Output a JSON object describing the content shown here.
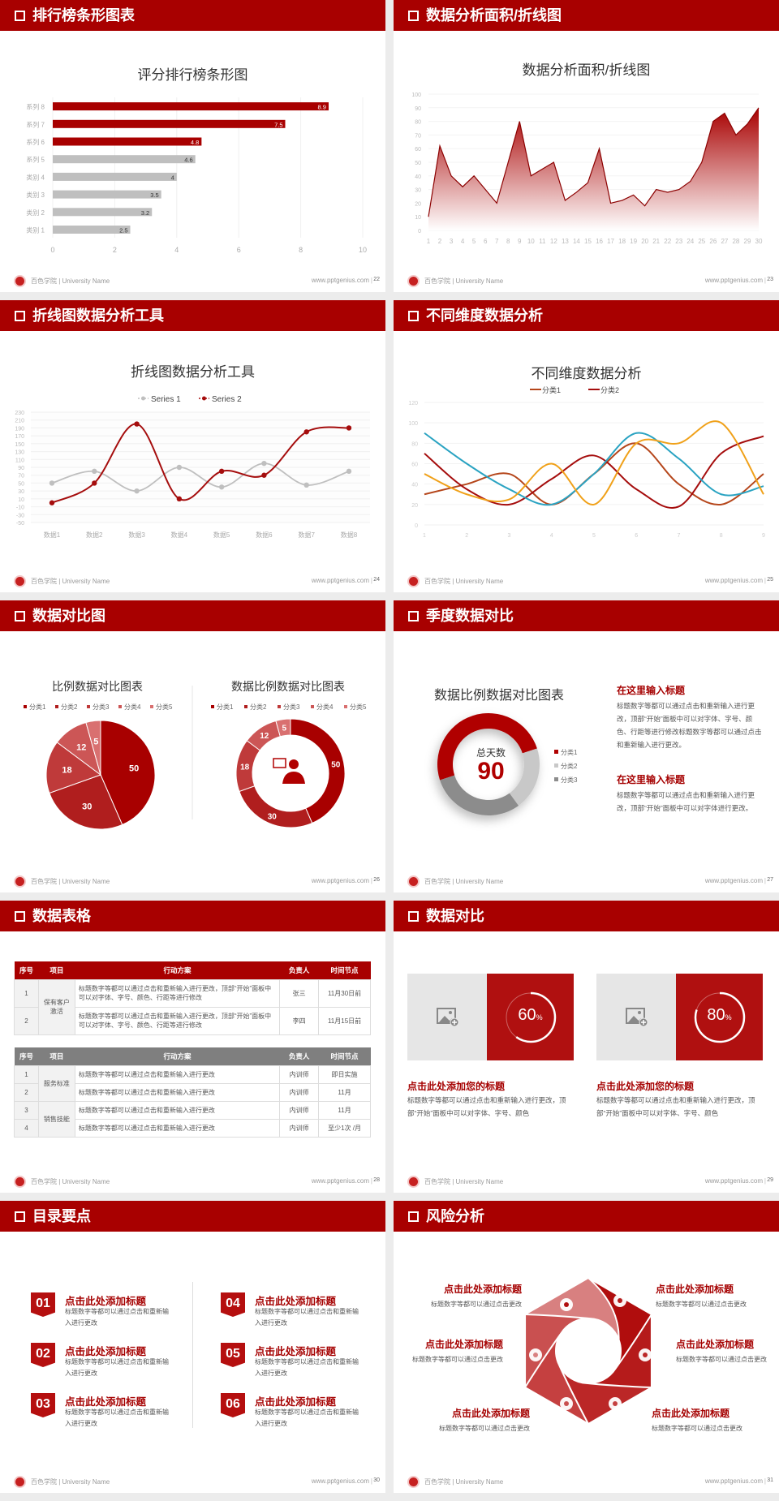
{
  "footer": {
    "school": "百色学院 | University Name",
    "url": "www.pptgenius.com",
    "separator": "|"
  },
  "colors": {
    "header": "#a80000",
    "accent": "#a50000",
    "gray": "#bfbfbf"
  },
  "slides": [
    {
      "title": "排行榜条形图表",
      "page": "22"
    },
    {
      "title": "数据分析面积/折线图",
      "page": "23"
    },
    {
      "title": "折线图数据分析工具",
      "page": "24"
    },
    {
      "title": "不同维度数据分析",
      "page": "25"
    },
    {
      "title": "数据对比图",
      "page": "26"
    },
    {
      "title": "季度数据对比",
      "page": "27"
    },
    {
      "title": "数据表格",
      "page": "28"
    },
    {
      "title": "数据对比",
      "page": "29"
    },
    {
      "title": "目录要点",
      "page": "30"
    },
    {
      "title": "风险分析",
      "page": "31"
    }
  ],
  "chart_data": [
    {
      "type": "bar",
      "orientation": "horizontal",
      "title": "评分排行榜条形图",
      "categories": [
        "类别 1",
        "类别 2",
        "类别 3",
        "类别 4",
        "系列 5",
        "系列 6",
        "系列 7",
        "系列 8"
      ],
      "values": [
        2.5,
        3.2,
        3.5,
        4,
        4.6,
        4.8,
        7.5,
        8.9
      ],
      "highlight_colors": [
        "#bfbfbf",
        "#bfbfbf",
        "#bfbfbf",
        "#bfbfbf",
        "#bfbfbf",
        "#a80000",
        "#a80000",
        "#a80000"
      ],
      "xlim": [
        0,
        10
      ],
      "xticks": [
        0,
        2,
        4,
        6,
        8,
        10
      ],
      "grid": true
    },
    {
      "type": "area",
      "title": "数据分析面积/折线图",
      "x": [
        1,
        2,
        3,
        4,
        5,
        6,
        7,
        8,
        9,
        10,
        11,
        12,
        13,
        14,
        15,
        16,
        17,
        18,
        19,
        20,
        21,
        22,
        23,
        24,
        25,
        26,
        27,
        28,
        29,
        30
      ],
      "values": [
        10,
        62,
        40,
        32,
        40,
        30,
        20,
        50,
        80,
        40,
        45,
        50,
        22,
        28,
        35,
        60,
        20,
        22,
        26,
        18,
        30,
        28,
        30,
        36,
        50,
        80,
        86,
        70,
        78,
        90
      ],
      "ylim": [
        0,
        100
      ],
      "yticks": [
        0,
        10,
        20,
        30,
        40,
        50,
        60,
        70,
        80,
        90,
        100
      ],
      "color": "#a80000",
      "grid": true
    },
    {
      "type": "line",
      "smooth": true,
      "title": "折线图数据分析工具",
      "categories": [
        "数据1",
        "数据2",
        "数据3",
        "数据4",
        "数据5",
        "数据6",
        "数据7",
        "数据8"
      ],
      "series": [
        {
          "name": "Series 1",
          "values": [
            50,
            80,
            30,
            90,
            40,
            100,
            45,
            80
          ],
          "color": "#bfbfbf"
        },
        {
          "name": "Series 2",
          "values": [
            0,
            50,
            200,
            10,
            80,
            70,
            180,
            190
          ],
          "color": "#a50d0d"
        }
      ],
      "ylim": [
        -50,
        230
      ],
      "yticks": [
        -50,
        -30,
        -10,
        10,
        30,
        50,
        70,
        90,
        110,
        130,
        150,
        170,
        190,
        210,
        230
      ],
      "legend": "top",
      "grid": true
    },
    {
      "type": "line",
      "smooth": true,
      "title": "不同维度数据分析",
      "x": [
        1,
        2,
        3,
        4,
        5,
        6,
        7,
        8,
        9
      ],
      "series": [
        {
          "name": "分类1",
          "values": [
            30,
            40,
            50,
            20,
            50,
            80,
            40,
            20,
            50
          ],
          "color": "#b5461b"
        },
        {
          "name": "分类2",
          "values": [
            70,
            35,
            20,
            45,
            68,
            35,
            18,
            70,
            87
          ],
          "color": "#a50d0d"
        },
        {
          "values": [
            90,
            60,
            35,
            20,
            50,
            90,
            65,
            30,
            38
          ],
          "color": "#2aa3c2"
        },
        {
          "values": [
            50,
            30,
            25,
            60,
            20,
            80,
            80,
            100,
            30
          ],
          "color": "#f0a11a"
        }
      ],
      "ylim": [
        0,
        120
      ],
      "yticks": [
        0,
        20,
        40,
        60,
        80,
        100,
        120
      ],
      "legend": "top",
      "grid": true
    },
    {
      "type": "pie",
      "title": "比例数据对比图表",
      "labels": [
        "分类1",
        "分类2",
        "分类3",
        "分类4",
        "分类5"
      ],
      "values": [
        50,
        30,
        18,
        12,
        5
      ],
      "colors": [
        "#a80000",
        "#b01e1e",
        "#bf3a3a",
        "#cc5656",
        "#d97070"
      ],
      "legend": "top"
    },
    {
      "type": "donut",
      "title": "数据比例数据对比图表",
      "labels": [
        "分类1",
        "分类2",
        "分类3",
        "分类4",
        "分类5"
      ],
      "values": [
        50,
        30,
        18,
        12,
        5
      ],
      "colors": [
        "#a80000",
        "#b01e1e",
        "#bf3a3a",
        "#cc5656",
        "#d97070"
      ],
      "legend": "top",
      "center_icon": "presenter-icon"
    },
    {
      "type": "donut",
      "title": "数据比例数据对比图表",
      "center_label": "总天数",
      "center_value": "90",
      "labels": [
        "分类1",
        "分类2",
        "分类3"
      ],
      "values": [
        50,
        20,
        30
      ],
      "colors": [
        "#b00000",
        "#c8c8c8",
        "#8c8c8c"
      ],
      "legend": "right"
    }
  ],
  "quarter": {
    "blocks": [
      {
        "heading": "在这里输入标题",
        "text": "标题数字等都可以通过点击和重新输入进行更改，顶部“开始”面板中可以对字体、字号、颜色、行距等进行修改标题数字等都可以通过点击和重新输入进行更改。"
      },
      {
        "heading": "在这里输入标题",
        "text": "标题数字等都可以通过点击和重新输入进行更改，顶部“开始”面板中可以对字体进行更改。"
      }
    ]
  },
  "tables": [
    {
      "header": [
        "序号",
        "项目",
        "行动方案",
        "负责人",
        "时间节点"
      ],
      "header_color": "#a80000",
      "groups": [
        {
          "project": "保有客户激活",
          "rows": [
            {
              "no": "1",
              "plan": "标题数字等都可以通过点击和重新输入进行更改，顶部“开始”面板中可以对字体、字号、颜色、行距等进行修改",
              "owner": "张三",
              "time": "11月30日前"
            },
            {
              "no": "2",
              "plan": "标题数字等都可以通过点击和重新输入进行更改，顶部“开始”面板中可以对字体、字号、颜色、行距等进行修改",
              "owner": "李四",
              "time": "11月15日前"
            }
          ]
        }
      ]
    },
    {
      "header": [
        "序号",
        "项目",
        "行动方案",
        "负责人",
        "时间节点"
      ],
      "header_color": "#7f7f7f",
      "groups": [
        {
          "project": "服务标准",
          "rows": [
            {
              "no": "1",
              "plan": "标题数字等都可以通过点击和重新输入进行更改",
              "owner": "内训师",
              "time": "即日实施"
            },
            {
              "no": "2",
              "plan": "标题数字等都可以通过点击和重新输入进行更改",
              "owner": "内训师",
              "time": "11月"
            }
          ]
        },
        {
          "project": "销售技能",
          "rows": [
            {
              "no": "3",
              "plan": "标题数字等都可以通过点击和重新输入进行更改",
              "owner": "内训师",
              "time": "11月"
            },
            {
              "no": "4",
              "plan": "标题数字等都可以通过点击和重新输入进行更改",
              "owner": "内训师",
              "time": "至少1次 /月"
            }
          ]
        }
      ]
    }
  ],
  "compare": {
    "cards": [
      {
        "percent": 60,
        "value": "60",
        "unit": "%",
        "heading": "点击此处添加您的标题",
        "text": "标题数字等都可以通过点击和重新输入进行更改，顶部“开始”面板中可以对字体、字号、颜色",
        "icon": "image-add-icon"
      },
      {
        "percent": 80,
        "value": "80",
        "unit": "%",
        "heading": "点击此处添加您的标题",
        "text": "标题数字等都可以通过点击和重新输入进行更改，顶部“开始”面板中可以对字体、字号、颜色",
        "icon": "image-add-icon"
      }
    ]
  },
  "toc": {
    "items": [
      {
        "num": "01",
        "heading": "点击此处添加标题",
        "text": "标题数字等都可以通过点击和重新输入进行更改"
      },
      {
        "num": "02",
        "heading": "点击此处添加标题",
        "text": "标题数字等都可以通过点击和重新输入进行更改"
      },
      {
        "num": "03",
        "heading": "点击此处添加标题",
        "text": "标题数字等都可以通过点击和重新输入进行更改"
      },
      {
        "num": "04",
        "heading": "点击此处添加标题",
        "text": "标题数字等都可以通过点击和重新输入进行更改"
      },
      {
        "num": "05",
        "heading": "点击此处添加标题",
        "text": "标题数字等都可以通过点击和重新输入进行更改"
      },
      {
        "num": "06",
        "heading": "点击此处添加标题",
        "text": "标题数字等都可以通过点击和重新输入进行更改"
      }
    ]
  },
  "risk": {
    "items": [
      {
        "heading": "点击此处添加标题",
        "text": "标题数字等都可以通过点击更改",
        "icon": "money-bag-icon"
      },
      {
        "heading": "点击此处添加标题",
        "text": "标题数字等都可以通过点击更改",
        "icon": "coins-icon"
      },
      {
        "heading": "点击此处添加标题",
        "text": "标题数字等都可以通过点击更改",
        "icon": "users-icon"
      },
      {
        "heading": "点击此处添加标题",
        "text": "标题数字等都可以通过点击更改",
        "icon": "pie-chart-icon"
      },
      {
        "heading": "点击此处添加标题",
        "text": "标题数字等都可以通过点击更改",
        "icon": "building-icon"
      },
      {
        "heading": "点击此处添加标题",
        "text": "标题数字等都可以通过点击更改",
        "icon": "hand-money-icon"
      }
    ]
  }
}
